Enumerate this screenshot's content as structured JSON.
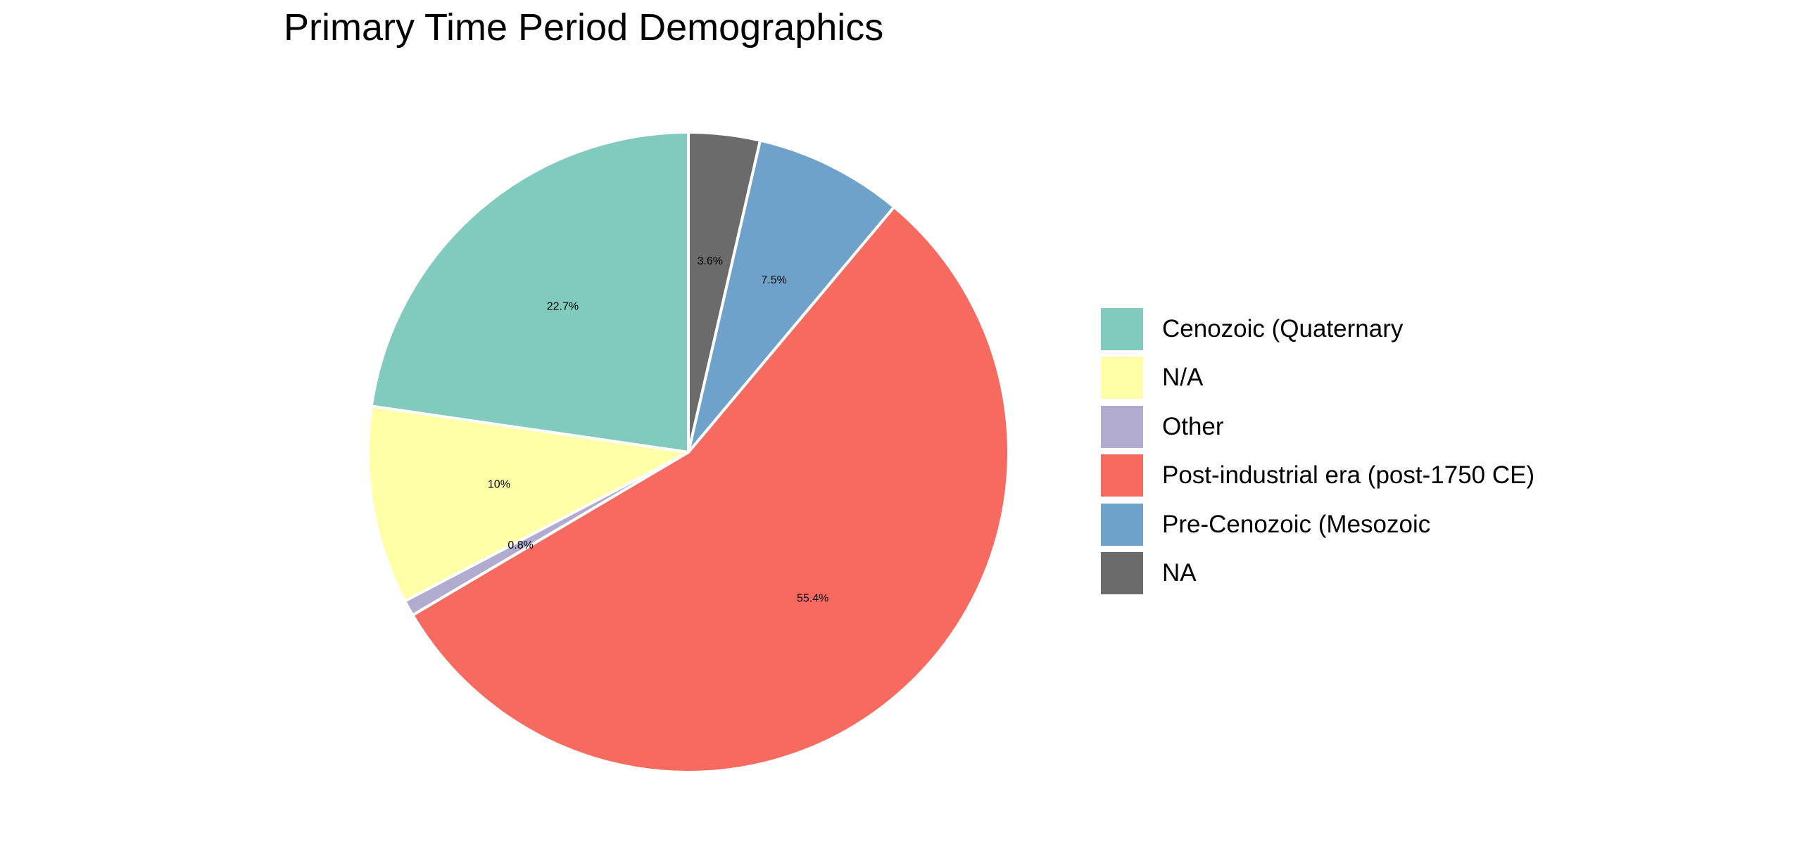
{
  "chart_data": {
    "type": "pie",
    "title": "Primary Time Period Demographics",
    "start": "12 o'clock",
    "direction": "counterclockwise",
    "slices": [
      {
        "label": "Cenozoic (Quaternary",
        "value": 22.7,
        "display": "22.7%",
        "color": "#80cbbd"
      },
      {
        "label": "N/A",
        "value": 10.0,
        "display": "10%",
        "color": "#ffffa8"
      },
      {
        "label": "Other",
        "value": 0.8,
        "display": "0.8%",
        "color": "#b1abd0"
      },
      {
        "label": "Post-industrial era (post-1750 CE)",
        "value": 55.4,
        "display": "55.4%",
        "color": "#f66a60"
      },
      {
        "label": "Pre-Cenozoic (Mesozoic",
        "value": 7.5,
        "display": "7.5%",
        "color": "#6fa2ca"
      },
      {
        "label": "NA",
        "value": 3.6,
        "display": "3.6%",
        "color": "#6b6b6b"
      }
    ],
    "legend_position": "right"
  }
}
